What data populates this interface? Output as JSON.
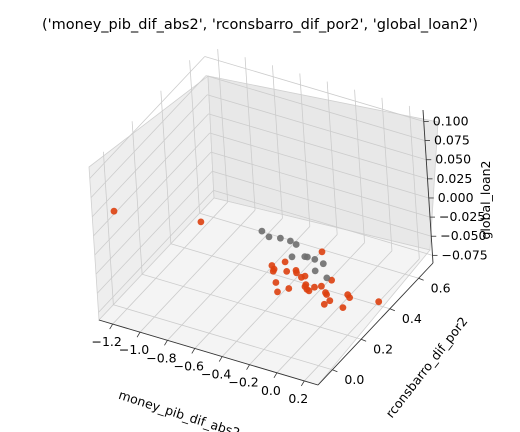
{
  "chart_data": {
    "type": "scatter3d",
    "title": "('money_pib_dif_abs2', 'rconsbarro_dif_por2', 'global_loan2')",
    "xlabel": "money_pib_dif_abs2",
    "ylabel": "rconsbarro_dif_por2",
    "zlabel": "global_loan2",
    "x_ticks": [
      "−1.2",
      "−1.0",
      "−0.8",
      "−0.6",
      "−0.4",
      "−0.2",
      "0.0",
      "0.2"
    ],
    "y_ticks": [
      "0.0",
      "0.2",
      "0.4",
      "0.6"
    ],
    "z_ticks": [
      "0.100",
      "0.075",
      "0.050",
      "0.025",
      "0.000",
      "−0.025",
      "−0.050",
      "−0.075"
    ],
    "xlim": [
      -1.3,
      0.3
    ],
    "ylim": [
      -0.1,
      0.7
    ],
    "zlim": [
      -0.085,
      0.115
    ],
    "grid": true,
    "series": [
      {
        "color": "#dd4010",
        "points": [
          [
            -1.25,
            0.0,
            0.04
          ],
          [
            -1.18,
            0.5,
            -0.07
          ],
          [
            -0.35,
            0.55,
            -0.075
          ],
          [
            -0.3,
            0.2,
            -0.055
          ],
          [
            -0.25,
            0.15,
            -0.03
          ],
          [
            -0.2,
            0.3,
            -0.06
          ],
          [
            -0.2,
            0.1,
            0.0
          ],
          [
            -0.15,
            0.25,
            -0.05
          ],
          [
            -0.15,
            0.05,
            0.01
          ],
          [
            -0.12,
            0.4,
            -0.07
          ],
          [
            -0.1,
            0.1,
            -0.02
          ],
          [
            -0.1,
            0.0,
            0.03
          ],
          [
            -0.08,
            0.2,
            -0.04
          ],
          [
            -0.05,
            0.3,
            -0.065
          ],
          [
            -0.05,
            0.05,
            0.015
          ],
          [
            -0.03,
            0.15,
            -0.01
          ],
          [
            0.0,
            0.1,
            0.0
          ],
          [
            0.0,
            0.0,
            0.04
          ],
          [
            0.0,
            0.25,
            -0.05
          ],
          [
            0.02,
            0.05,
            0.02
          ],
          [
            0.03,
            0.2,
            -0.03
          ],
          [
            0.05,
            0.1,
            -0.015
          ],
          [
            0.05,
            0.35,
            -0.07
          ],
          [
            0.08,
            0.0,
            0.03
          ],
          [
            0.1,
            0.15,
            -0.04
          ],
          [
            0.12,
            0.3,
            -0.06
          ],
          [
            0.15,
            0.05,
            0.005
          ],
          [
            0.18,
            0.2,
            -0.05
          ],
          [
            0.2,
            0.1,
            -0.02
          ],
          [
            0.22,
            0.4,
            -0.08
          ]
        ]
      },
      {
        "color": "#6e6e6e",
        "points": [
          [
            -0.05,
            -0.05,
            0.08
          ],
          [
            0.0,
            -0.02,
            0.075
          ],
          [
            0.05,
            0.0,
            0.07
          ],
          [
            0.1,
            -0.04,
            0.06
          ],
          [
            0.15,
            0.0,
            0.055
          ],
          [
            0.2,
            0.02,
            0.05
          ],
          [
            0.25,
            0.03,
            0.045
          ],
          [
            -0.1,
            -0.05,
            0.085
          ],
          [
            0.08,
            0.01,
            0.065
          ],
          [
            0.18,
            -0.01,
            0.058
          ],
          [
            0.22,
            0.0,
            0.04
          ],
          [
            0.28,
            0.02,
            0.03
          ]
        ]
      }
    ]
  }
}
